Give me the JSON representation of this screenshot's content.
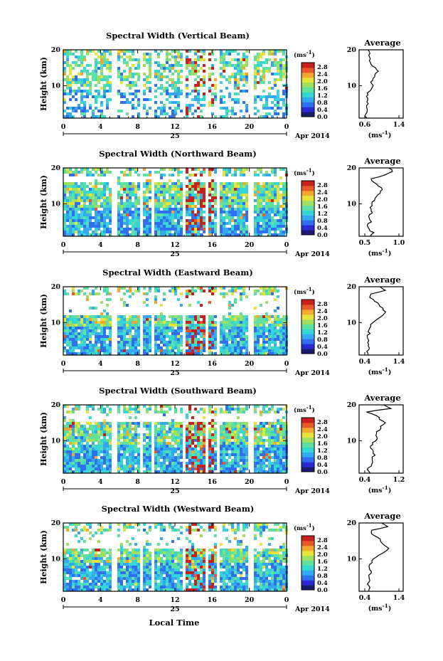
{
  "panels": [
    {
      "title": "Spectral Width (Vertical Beam)",
      "avg_title": "Average",
      "avg_xticks": [
        "0.6",
        "1.4"
      ],
      "avg_xlim": [
        0.4,
        1.6
      ],
      "blank_top": 0.0,
      "profile": [
        [
          1,
          0.6
        ],
        [
          2,
          0.58
        ],
        [
          3,
          0.62
        ],
        [
          4,
          0.6
        ],
        [
          5,
          0.66
        ],
        [
          6,
          0.62
        ],
        [
          7,
          0.6
        ],
        [
          8,
          0.64
        ],
        [
          9,
          0.72
        ],
        [
          10,
          0.8
        ],
        [
          11,
          0.7
        ],
        [
          12,
          0.78
        ],
        [
          13,
          0.82
        ],
        [
          14,
          0.92
        ],
        [
          15,
          0.84
        ],
        [
          16,
          0.72
        ],
        [
          17,
          0.66
        ],
        [
          18,
          0.7
        ],
        [
          19,
          0.68
        ],
        [
          20,
          0.64
        ]
      ]
    },
    {
      "title": "Spectral Width (Northward Beam)",
      "avg_title": "Average",
      "avg_xticks": [
        "0.5",
        "1.0"
      ],
      "avg_xlim": [
        0.35,
        1.15
      ],
      "blank_top": 0.15,
      "profile": [
        [
          1,
          0.55
        ],
        [
          2,
          0.6
        ],
        [
          3,
          0.52
        ],
        [
          4,
          0.48
        ],
        [
          5,
          0.56
        ],
        [
          6,
          0.52
        ],
        [
          7,
          0.54
        ],
        [
          8,
          0.58
        ],
        [
          9,
          0.56
        ],
        [
          10,
          0.6
        ],
        [
          11,
          0.62
        ],
        [
          12,
          0.66
        ],
        [
          13,
          0.72
        ],
        [
          14,
          0.78
        ],
        [
          15,
          0.7
        ],
        [
          16,
          0.62
        ],
        [
          17,
          0.58
        ],
        [
          18,
          0.8
        ],
        [
          19,
          0.96
        ],
        [
          20,
          0.9
        ]
      ]
    },
    {
      "title": "Spectral Width (Eastward Beam)",
      "avg_title": "Average",
      "avg_xticks": [
        "0.4",
        "1.4"
      ],
      "avg_xlim": [
        0.3,
        1.5
      ],
      "blank_top": 0.35,
      "profile": [
        [
          1,
          0.55
        ],
        [
          2,
          0.52
        ],
        [
          3,
          0.58
        ],
        [
          4,
          0.54
        ],
        [
          5,
          0.56
        ],
        [
          6,
          0.52
        ],
        [
          7,
          0.58
        ],
        [
          8,
          0.56
        ],
        [
          9,
          0.6
        ],
        [
          10,
          0.66
        ],
        [
          11,
          0.78
        ],
        [
          12,
          0.92
        ],
        [
          13,
          1.02
        ],
        [
          14,
          0.94
        ],
        [
          15,
          0.84
        ],
        [
          16,
          0.72
        ],
        [
          17,
          0.6
        ],
        [
          18,
          0.62
        ],
        [
          19,
          1.0
        ],
        [
          20,
          0.88
        ]
      ]
    },
    {
      "title": "Spectral Width (Southward Beam)",
      "avg_title": "Average",
      "avg_xticks": [
        "0.4",
        "1.2"
      ],
      "avg_xlim": [
        0.3,
        1.3
      ],
      "blank_top": 0.2,
      "profile": [
        [
          1,
          0.55
        ],
        [
          2,
          0.5
        ],
        [
          3,
          0.56
        ],
        [
          4,
          0.62
        ],
        [
          5,
          0.58
        ],
        [
          6,
          0.66
        ],
        [
          7,
          0.62
        ],
        [
          8,
          0.56
        ],
        [
          9,
          0.6
        ],
        [
          10,
          0.66
        ],
        [
          11,
          0.72
        ],
        [
          12,
          0.68
        ],
        [
          13,
          0.76
        ],
        [
          14,
          0.8
        ],
        [
          15,
          0.88
        ],
        [
          16,
          0.76
        ],
        [
          17,
          0.7
        ],
        [
          18,
          0.46
        ],
        [
          19,
          1.0
        ],
        [
          20,
          0.86
        ]
      ]
    },
    {
      "title": "Spectral Width (Westward Beam)",
      "avg_title": "Average",
      "avg_xticks": [
        "0.4",
        "1.4"
      ],
      "avg_xlim": [
        0.3,
        1.5
      ],
      "blank_top": 0.3,
      "profile": [
        [
          1,
          0.55
        ],
        [
          2,
          0.6
        ],
        [
          3,
          0.54
        ],
        [
          4,
          0.58
        ],
        [
          5,
          0.56
        ],
        [
          6,
          0.62
        ],
        [
          7,
          0.6
        ],
        [
          8,
          0.58
        ],
        [
          9,
          0.64
        ],
        [
          10,
          0.7
        ],
        [
          11,
          0.82
        ],
        [
          12,
          0.98
        ],
        [
          13,
          1.12
        ],
        [
          14,
          0.96
        ],
        [
          15,
          0.9
        ],
        [
          16,
          0.8
        ],
        [
          17,
          0.62
        ],
        [
          18,
          0.66
        ],
        [
          19,
          1.08
        ],
        [
          20,
          0.92
        ]
      ]
    }
  ],
  "ylabel": "Height (km)",
  "yticks": [
    "10",
    "20"
  ],
  "xticks": [
    "0",
    "4",
    "8",
    "12",
    "16",
    "20",
    "0"
  ],
  "day_label": "25",
  "month_label": "Apr 2014",
  "colorbar_unit": "(ms",
  "colorbar_exp": "-1",
  "colorbar_ticks": [
    "0.0",
    "0.4",
    "0.8",
    "1.2",
    "1.6",
    "2.0",
    "2.4",
    "2.8"
  ],
  "avg_unit": "(ms",
  "avg_exp": "-1",
  "xlabel": "Local Time",
  "colorscale": [
    "#1a1a6e",
    "#2b2bd6",
    "#2f6ff0",
    "#34a8f0",
    "#36d6d6",
    "#5ee0a0",
    "#a0e060",
    "#e6e43a",
    "#f0a830",
    "#e85828",
    "#c8201c"
  ],
  "chart_data": [
    {
      "type": "heatmap",
      "title": "Spectral Width (Vertical Beam)",
      "xlabel": "",
      "ylabel": "Height (km)",
      "xlim": [
        0,
        24
      ],
      "ylim": [
        1,
        20
      ],
      "colorbar_range": [
        0.0,
        2.8
      ],
      "x_gaps_hours": [
        [
          4.9,
          5.8
        ],
        [
          8.2,
          8.5
        ],
        [
          9.2,
          9.6
        ],
        [
          12.6,
          13.0
        ],
        [
          15.2,
          15.3
        ],
        [
          16.4,
          16.6
        ],
        [
          19.8,
          20.2
        ],
        [
          21.5,
          21.7
        ],
        [
          22.4,
          22.6
        ]
      ]
    },
    {
      "type": "heatmap",
      "title": "Spectral Width (Northward Beam)",
      "xlabel": "",
      "ylabel": "Height (km)",
      "xlim": [
        0,
        24
      ],
      "ylim": [
        1,
        20
      ],
      "colorbar_range": [
        0.0,
        2.8
      ],
      "x_gaps_hours": [
        [
          4.9,
          5.8
        ],
        [
          8.2,
          8.5
        ],
        [
          9.2,
          9.6
        ],
        [
          12.6,
          13.0
        ],
        [
          15.2,
          15.3
        ],
        [
          16.4,
          16.6
        ],
        [
          19.8,
          20.2
        ],
        [
          21.5,
          21.7
        ],
        [
          22.4,
          22.6
        ]
      ]
    },
    {
      "type": "heatmap",
      "title": "Spectral Width (Eastward Beam)",
      "xlabel": "",
      "ylabel": "Height (km)",
      "xlim": [
        0,
        24
      ],
      "ylim": [
        1,
        20
      ],
      "colorbar_range": [
        0.0,
        2.8
      ],
      "x_gaps_hours": [
        [
          4.9,
          5.8
        ],
        [
          8.2,
          8.5
        ],
        [
          9.2,
          9.6
        ],
        [
          12.6,
          13.0
        ],
        [
          15.2,
          15.3
        ],
        [
          16.4,
          16.6
        ],
        [
          19.8,
          20.2
        ],
        [
          21.5,
          21.7
        ],
        [
          22.4,
          22.6
        ]
      ]
    },
    {
      "type": "heatmap",
      "title": "Spectral Width (Southward Beam)",
      "xlabel": "",
      "ylabel": "Height (km)",
      "xlim": [
        0,
        24
      ],
      "ylim": [
        1,
        20
      ],
      "colorbar_range": [
        0.0,
        2.8
      ],
      "x_gaps_hours": [
        [
          4.9,
          5.8
        ],
        [
          8.2,
          8.5
        ],
        [
          9.2,
          9.6
        ],
        [
          12.6,
          13.0
        ],
        [
          15.2,
          15.3
        ],
        [
          16.4,
          16.6
        ],
        [
          19.8,
          20.2
        ],
        [
          21.5,
          21.7
        ],
        [
          22.4,
          22.6
        ]
      ]
    },
    {
      "type": "heatmap",
      "title": "Spectral Width (Westward Beam)",
      "xlabel": "Local Time",
      "ylabel": "Height (km)",
      "xlim": [
        0,
        24
      ],
      "ylim": [
        1,
        20
      ],
      "colorbar_range": [
        0.0,
        2.8
      ],
      "x_gaps_hours": [
        [
          4.9,
          5.8
        ],
        [
          8.2,
          8.5
        ],
        [
          9.2,
          9.6
        ],
        [
          12.6,
          13.0
        ],
        [
          15.2,
          15.3
        ],
        [
          16.4,
          16.6
        ],
        [
          19.8,
          20.2
        ],
        [
          21.5,
          21.7
        ],
        [
          22.4,
          22.6
        ]
      ]
    }
  ]
}
